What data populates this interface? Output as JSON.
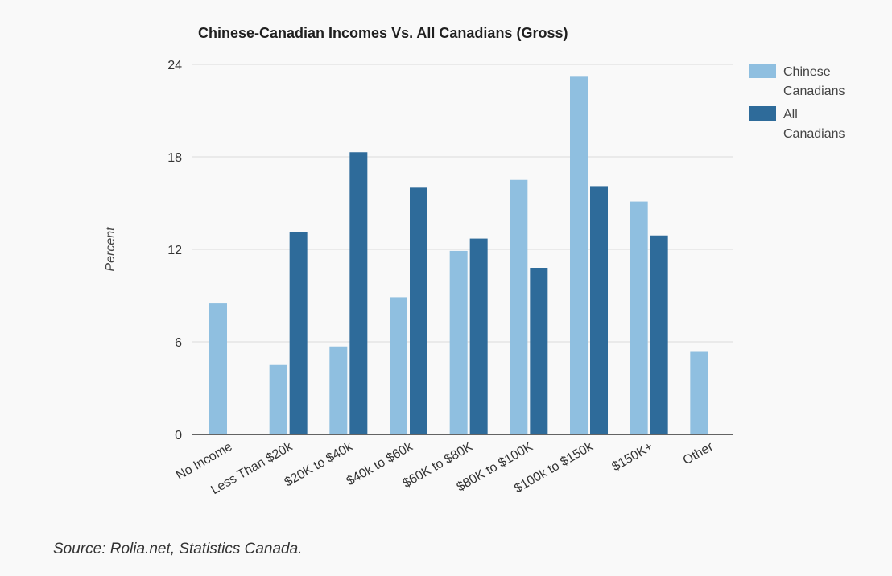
{
  "chart_data": {
    "type": "bar",
    "title": "Chinese-Canadian Incomes Vs. All Canadians (Gross)",
    "xlabel": "",
    "ylabel": "Percent",
    "ylim": [
      0,
      24
    ],
    "yticks": [
      0,
      6,
      12,
      18,
      24
    ],
    "grid": true,
    "legend_position": "top-right",
    "categories": [
      "No Income",
      "Less Than $20k",
      "$20K to $40k",
      "$40k to $60k",
      "$60K to $80K",
      "$80K to $100K",
      "$100k to $150k",
      "$150K+",
      "Other"
    ],
    "series": [
      {
        "name": "Chinese Canadians",
        "legend_lines": [
          "Chinese",
          "Canadians"
        ],
        "color": "#8fbfe0",
        "values": [
          8.5,
          4.5,
          5.7,
          8.9,
          11.9,
          16.5,
          23.2,
          15.1,
          5.4
        ]
      },
      {
        "name": "All Canadians",
        "legend_lines": [
          "All",
          "Canadians"
        ],
        "color": "#2e6b9a",
        "values": [
          null,
          13.1,
          18.3,
          16.0,
          12.7,
          10.8,
          16.1,
          12.9,
          null
        ]
      }
    ]
  },
  "footer": {
    "source": "Source: Rolia.net, Statistics Canada."
  }
}
